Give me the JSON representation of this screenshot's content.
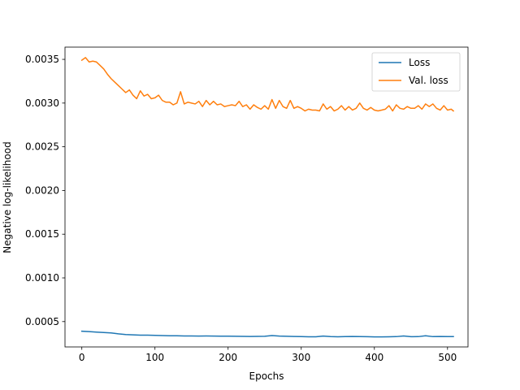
{
  "chart_data": {
    "type": "line",
    "title": "",
    "xlabel": "Epochs",
    "ylabel": "Negative log-likelihood",
    "xlim": [
      -23,
      528
    ],
    "ylim": [
      0.00021,
      0.00364
    ],
    "xticks": [
      0,
      100,
      200,
      300,
      400,
      500
    ],
    "yticks": [
      0.0005,
      0.001,
      0.0015,
      0.002,
      0.0025,
      0.003,
      0.0035
    ],
    "ytick_labels": [
      "0.0005",
      "0.0010",
      "0.0015",
      "0.0020",
      "0.0025",
      "0.0030",
      "0.0035"
    ],
    "grid": false,
    "legend": "top-right",
    "series": [
      {
        "name": "Loss",
        "color": "#1f77b4",
        "x": [
          0,
          10,
          20,
          30,
          40,
          50,
          60,
          70,
          80,
          90,
          100,
          110,
          120,
          130,
          140,
          150,
          160,
          170,
          180,
          190,
          200,
          210,
          220,
          230,
          240,
          250,
          260,
          270,
          280,
          290,
          300,
          310,
          320,
          330,
          340,
          350,
          360,
          370,
          380,
          390,
          400,
          410,
          420,
          430,
          440,
          450,
          460,
          470,
          480,
          490,
          500,
          508
        ],
        "y": [
          0.00039,
          0.000385,
          0.00038,
          0.000375,
          0.00037,
          0.00036,
          0.000352,
          0.000348,
          0.000345,
          0.000345,
          0.000342,
          0.00034,
          0.000338,
          0.000338,
          0.000336,
          0.000336,
          0.000334,
          0.000336,
          0.000334,
          0.000333,
          0.000333,
          0.000332,
          0.000331,
          0.00033,
          0.000331,
          0.000332,
          0.00034,
          0.000334,
          0.000332,
          0.00033,
          0.000328,
          0.000326,
          0.000326,
          0.000334,
          0.000328,
          0.000326,
          0.000328,
          0.00033,
          0.000328,
          0.000327,
          0.000325,
          0.000325,
          0.000326,
          0.000328,
          0.000335,
          0.000327,
          0.000328,
          0.000338,
          0.000328,
          0.00033,
          0.000328,
          0.000328
        ]
      },
      {
        "name": "Val. loss",
        "color": "#ff7f0e",
        "x": [
          0,
          5,
          10,
          15,
          20,
          25,
          30,
          35,
          40,
          45,
          50,
          55,
          60,
          65,
          70,
          75,
          80,
          85,
          90,
          95,
          100,
          105,
          110,
          115,
          120,
          125,
          130,
          135,
          140,
          145,
          150,
          155,
          160,
          165,
          170,
          175,
          180,
          185,
          190,
          195,
          200,
          205,
          210,
          215,
          220,
          225,
          230,
          235,
          240,
          245,
          250,
          255,
          260,
          265,
          270,
          275,
          280,
          285,
          290,
          295,
          300,
          305,
          310,
          315,
          320,
          325,
          330,
          335,
          340,
          345,
          350,
          355,
          360,
          365,
          370,
          375,
          380,
          385,
          390,
          395,
          400,
          405,
          410,
          415,
          420,
          425,
          430,
          435,
          440,
          445,
          450,
          455,
          460,
          465,
          470,
          475,
          480,
          485,
          490,
          495,
          500,
          505,
          508
        ],
        "y": [
          0.00349,
          0.00352,
          0.00347,
          0.00348,
          0.00347,
          0.00343,
          0.00339,
          0.00333,
          0.00328,
          0.00324,
          0.0032,
          0.00316,
          0.00312,
          0.00315,
          0.00309,
          0.00305,
          0.00314,
          0.00308,
          0.0031,
          0.00305,
          0.00306,
          0.00309,
          0.00303,
          0.00301,
          0.00301,
          0.00298,
          0.003,
          0.00313,
          0.00299,
          0.00301,
          0.003,
          0.00299,
          0.00302,
          0.00296,
          0.00303,
          0.00298,
          0.00302,
          0.00298,
          0.00299,
          0.00296,
          0.00297,
          0.00298,
          0.00297,
          0.00302,
          0.00296,
          0.00298,
          0.00293,
          0.00298,
          0.00295,
          0.00293,
          0.00297,
          0.00293,
          0.00304,
          0.00294,
          0.00303,
          0.00296,
          0.00294,
          0.00303,
          0.00294,
          0.00296,
          0.00294,
          0.00291,
          0.00293,
          0.00292,
          0.00292,
          0.00291,
          0.00299,
          0.00293,
          0.00296,
          0.00291,
          0.00293,
          0.00297,
          0.00292,
          0.00296,
          0.00292,
          0.00294,
          0.003,
          0.00294,
          0.00292,
          0.00295,
          0.00292,
          0.00291,
          0.00292,
          0.00293,
          0.00297,
          0.00291,
          0.00298,
          0.00294,
          0.00293,
          0.00296,
          0.00294,
          0.00294,
          0.00297,
          0.00293,
          0.00299,
          0.00296,
          0.00299,
          0.00294,
          0.00292,
          0.00297,
          0.00292,
          0.00293,
          0.00291
        ]
      }
    ]
  }
}
